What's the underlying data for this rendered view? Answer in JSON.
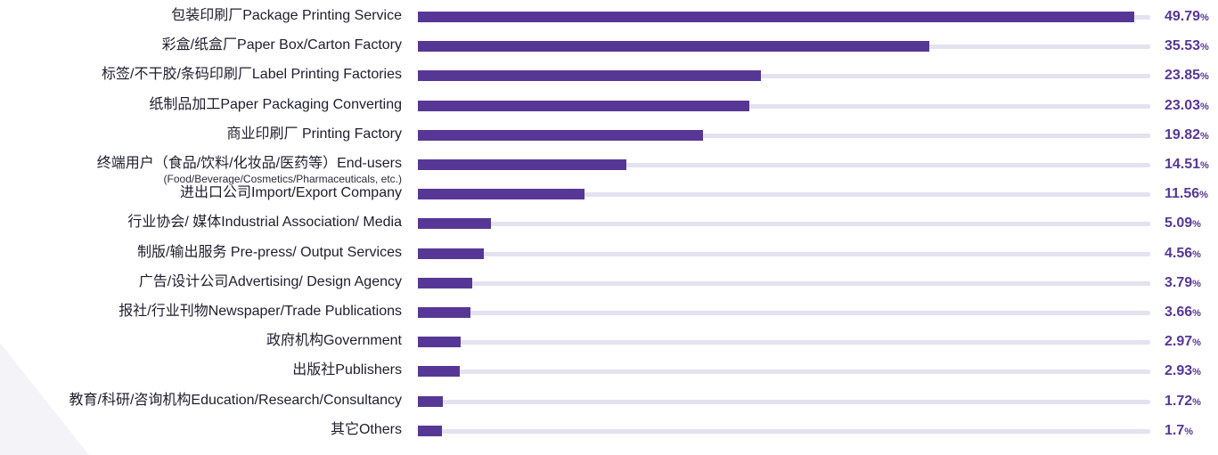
{
  "chart_data": {
    "type": "bar",
    "orientation": "horizontal",
    "xlim": [
      0,
      49.79
    ],
    "grid": false,
    "legend": "none",
    "unit": "%",
    "bar_color": "#573796",
    "track_color": "#e4e2f0",
    "categories": [
      {
        "label": "包装印刷厂Package Printing Service",
        "value": 49.79,
        "value_label": "49.79"
      },
      {
        "label": "彩盒/纸盒厂Paper Box/Carton Factory",
        "value": 35.53,
        "value_label": "35.53"
      },
      {
        "label": "标签/不干胶/条码印刷厂Label Printing Factories",
        "value": 23.85,
        "value_label": "23.85"
      },
      {
        "label": "纸制品加工Paper Packaging Converting",
        "value": 23.03,
        "value_label": "23.03"
      },
      {
        "label": "商业印刷厂 Printing Factory",
        "value": 19.82,
        "value_label": "19.82"
      },
      {
        "label": "终端用户（食品/饮料/化妆品/医药等）End-users",
        "sublabel": "(Food/Beverage/Cosmetics/Pharmaceuticals, etc.)",
        "value": 14.51,
        "value_label": "14.51"
      },
      {
        "label": "进出口公司Import/Export Company",
        "value": 11.56,
        "value_label": "11.56"
      },
      {
        "label": "行业协会/ 媒体Industrial Association/ Media",
        "value": 5.09,
        "value_label": "5.09"
      },
      {
        "label": "制版/输出服务 Pre-press/ Output Services",
        "value": 4.56,
        "value_label": "4.56"
      },
      {
        "label": "广告/设计公司Advertising/ Design Agency",
        "value": 3.79,
        "value_label": "3.79"
      },
      {
        "label": "报社/行业刊物Newspaper/Trade Publications",
        "value": 3.66,
        "value_label": "3.66"
      },
      {
        "label": "政府机构Government",
        "value": 2.97,
        "value_label": "2.97"
      },
      {
        "label": "出版社Publishers",
        "value": 2.93,
        "value_label": "2.93"
      },
      {
        "label": "教育/科研/咨询机构Education/Research/Consultancy",
        "value": 1.72,
        "value_label": "1.72"
      },
      {
        "label": "其它Others",
        "value": 1.7,
        "value_label": "1.7"
      }
    ]
  }
}
